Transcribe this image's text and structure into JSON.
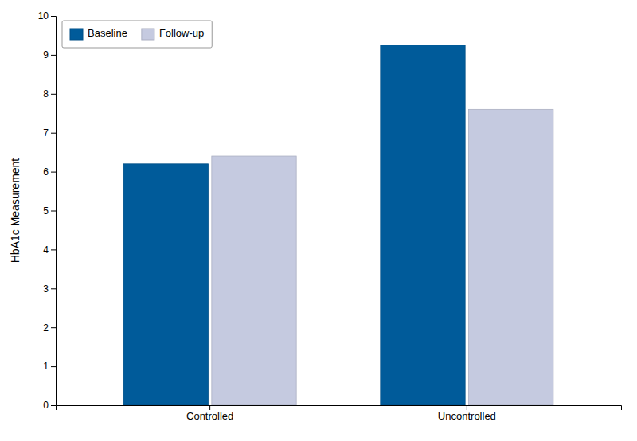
{
  "chart_data": {
    "type": "bar",
    "categories": [
      "Controlled",
      "Uncontrolled"
    ],
    "series": [
      {
        "name": "Baseline",
        "color": "#005B9A",
        "values": [
          6.2,
          9.25
        ]
      },
      {
        "name": "Follow-up",
        "color": "#C5CAE0",
        "values": [
          6.4,
          7.6
        ]
      }
    ],
    "y_label": "HbA1c Measurement",
    "ylim": [
      0,
      10
    ],
    "yticks": [
      0,
      1,
      2,
      3,
      4,
      5,
      6,
      7,
      8,
      9,
      10
    ],
    "grid": false,
    "legend": "top-left"
  }
}
